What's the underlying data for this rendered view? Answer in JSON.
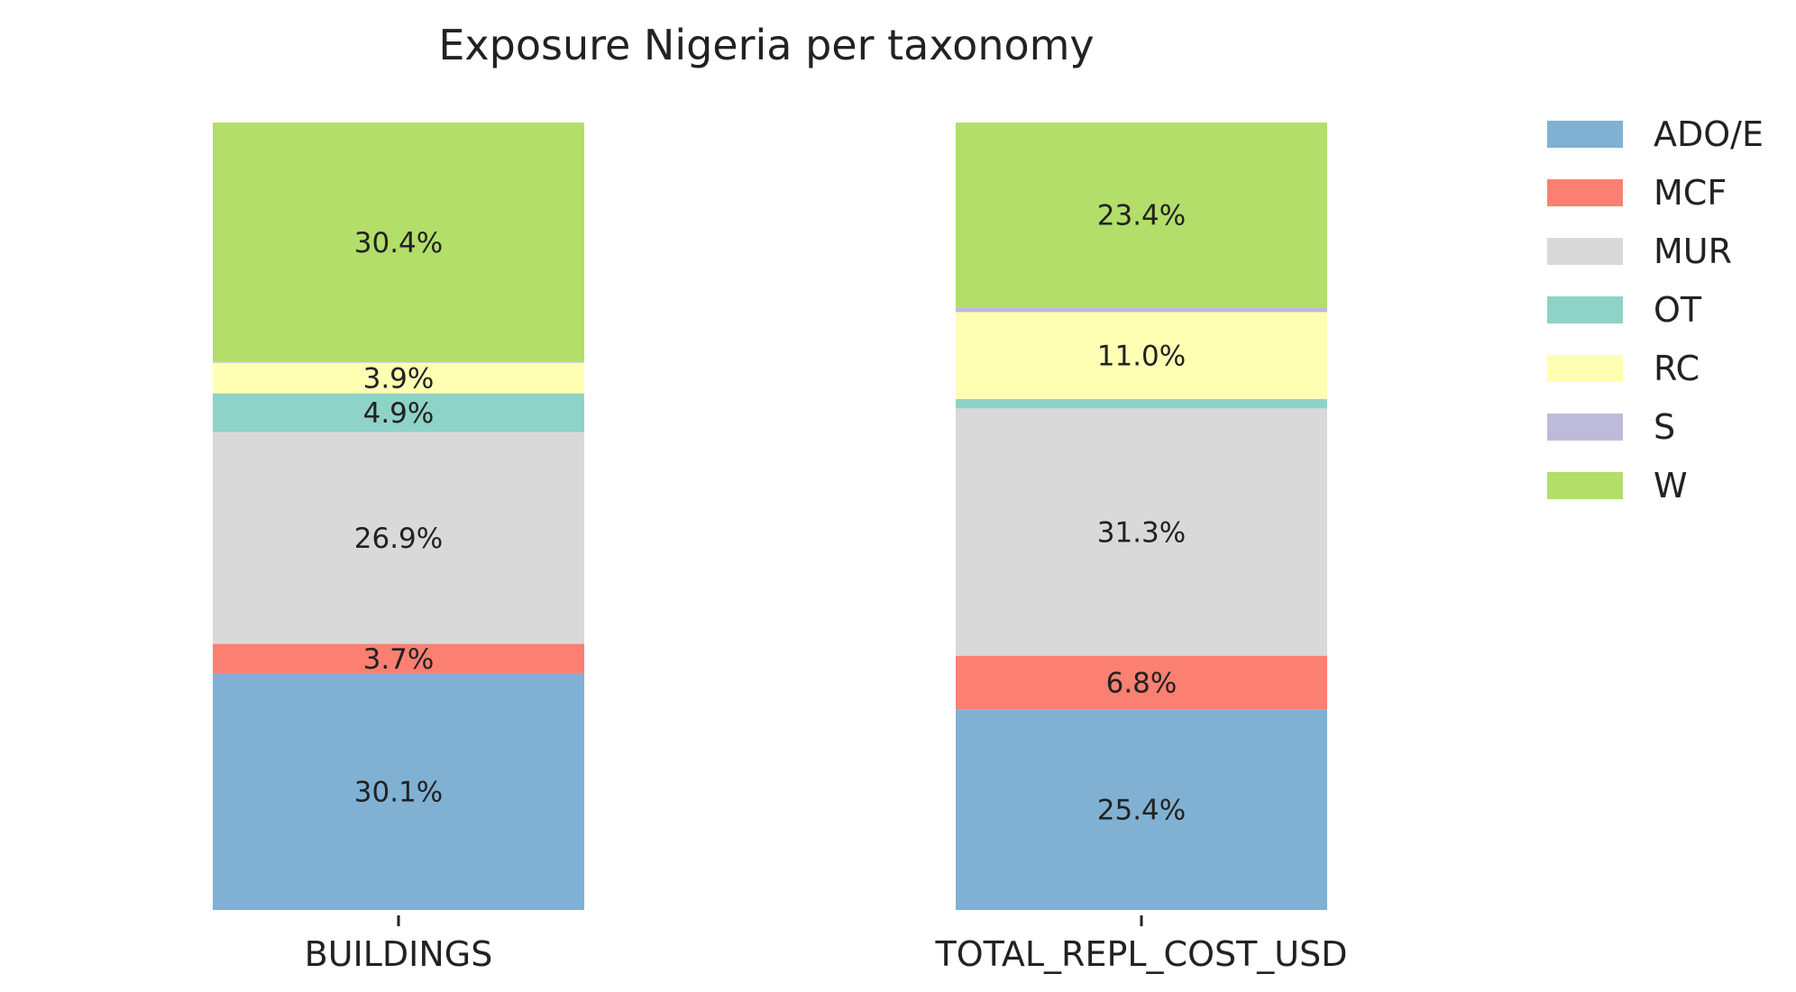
{
  "chart_data": {
    "type": "bar",
    "stacked": true,
    "normalized_percent": true,
    "title": "Exposure Nigeria per taxonomy",
    "xlabel": "",
    "ylabel": "",
    "ylim": [
      0,
      100
    ],
    "grid": false,
    "legend_position": "top-right, outside plot",
    "categories": [
      "BUILDINGS",
      "TOTAL_REPL_COST_USD"
    ],
    "series": [
      {
        "name": "ADO/E",
        "color": "#80b1d3",
        "values": [
          30.1,
          25.4
        ],
        "labels": [
          "30.1%",
          "25.4%"
        ]
      },
      {
        "name": "MCF",
        "color": "#fb8072",
        "values": [
          3.7,
          6.8
        ],
        "labels": [
          "3.7%",
          "6.8%"
        ]
      },
      {
        "name": "MUR",
        "color": "#d9d9d9",
        "values": [
          26.9,
          31.3
        ],
        "labels": [
          "26.9%",
          "31.3%"
        ]
      },
      {
        "name": "OT",
        "color": "#8dd3c7",
        "values": [
          4.9,
          1.2
        ],
        "labels": [
          "4.9%",
          ""
        ]
      },
      {
        "name": "RC",
        "color": "#ffffb3",
        "values": [
          3.9,
          11.0
        ],
        "labels": [
          "3.9%",
          "11.0%"
        ]
      },
      {
        "name": "S",
        "color": "#bebada",
        "values": [
          0.1,
          0.6
        ],
        "labels": [
          "",
          ""
        ]
      },
      {
        "name": "W",
        "color": "#b3de69",
        "values": [
          30.4,
          23.4
        ],
        "labels": [
          "30.4%",
          "23.4%"
        ]
      }
    ]
  }
}
